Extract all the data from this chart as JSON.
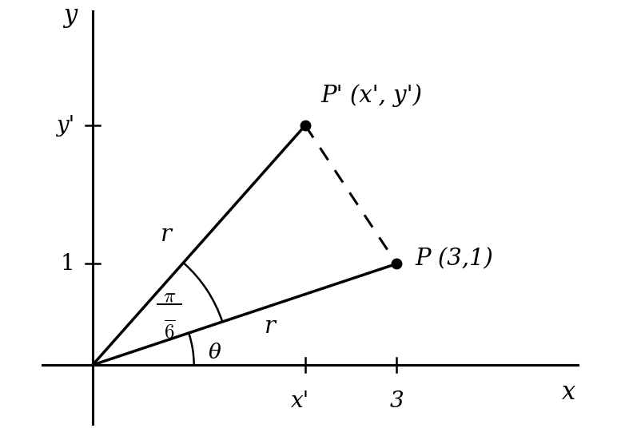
{
  "background_color": "#ffffff",
  "xlim": [
    -0.5,
    4.8
  ],
  "ylim": [
    -0.6,
    3.5
  ],
  "P_x": 3.0,
  "P_y": 1.0,
  "theta_deg": 18.435,
  "pi_over_6_deg": 30.0,
  "axis_color": "#000000",
  "line_color": "#000000",
  "dashed_color": "#000000",
  "label_P": "P (3,1)",
  "label_Pprime": "P' (x', y')",
  "label_r1": "r",
  "label_r2": "r",
  "label_theta": "θ",
  "label_x": "x",
  "label_y": "y",
  "label_xprime": "x'",
  "label_yprime": "y'",
  "label_1": "1",
  "label_3": "3",
  "line_width": 2.5,
  "dot_size": 9,
  "figwidth": 7.77,
  "figheight": 5.36,
  "dpi": 100
}
